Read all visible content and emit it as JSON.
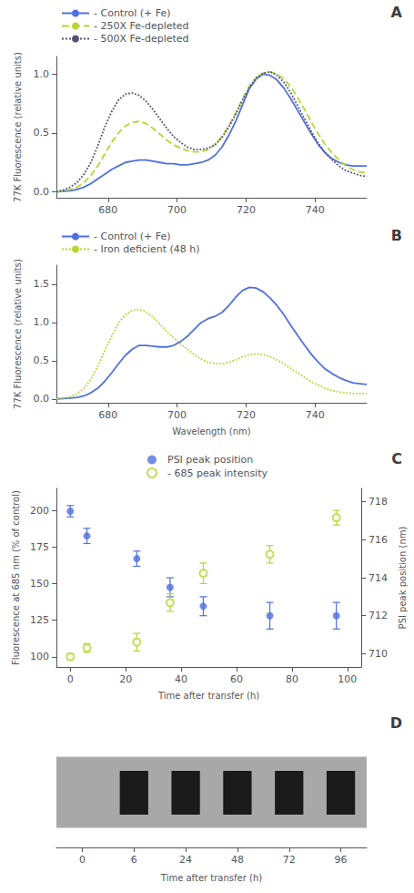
{
  "chart_data": [
    {
      "type": "line",
      "title": "A",
      "ylabel": "77K Fluorescence (relative units)",
      "xlim": [
        665,
        755
      ],
      "xticks": [
        680,
        700,
        720,
        740
      ],
      "ylim": [
        -0.05,
        1.15
      ],
      "yticks": [
        {
          "value": 0.0,
          "label": "0.0"
        },
        0.5,
        {
          "value": 1.0,
          "label": "1.0"
        }
      ],
      "grid": false,
      "legend": "top left",
      "x": [
        665,
        667,
        669,
        671,
        673,
        675,
        677,
        679,
        681,
        683,
        685,
        687,
        689,
        691,
        693,
        695,
        697,
        699,
        701,
        703,
        705,
        707,
        709,
        711,
        713,
        715,
        717,
        719,
        721,
        723,
        725,
        727,
        729,
        731,
        733,
        735,
        737,
        739,
        741,
        743,
        745,
        747,
        749,
        751,
        753,
        755
      ],
      "series": [
        {
          "name": "- Control (+ Fe)",
          "line_style": "solid",
          "values": [
            0.0,
            0.005,
            0.01,
            0.02,
            0.04,
            0.07,
            0.11,
            0.15,
            0.19,
            0.22,
            0.25,
            0.26,
            0.27,
            0.27,
            0.26,
            0.25,
            0.24,
            0.24,
            0.23,
            0.23,
            0.24,
            0.25,
            0.27,
            0.31,
            0.38,
            0.48,
            0.6,
            0.74,
            0.88,
            0.96,
            1.0,
            0.99,
            0.95,
            0.88,
            0.79,
            0.69,
            0.59,
            0.49,
            0.4,
            0.33,
            0.28,
            0.25,
            0.23,
            0.22,
            0.22,
            0.22
          ]
        },
        {
          "name": "- 250X Fe-depleted",
          "line_style": "dashed",
          "values": [
            0.0,
            0.01,
            0.02,
            0.04,
            0.08,
            0.14,
            0.22,
            0.32,
            0.42,
            0.5,
            0.56,
            0.59,
            0.6,
            0.58,
            0.54,
            0.49,
            0.44,
            0.4,
            0.37,
            0.35,
            0.34,
            0.34,
            0.36,
            0.4,
            0.47,
            0.56,
            0.67,
            0.79,
            0.9,
            0.97,
            1.01,
            1.02,
            1.0,
            0.96,
            0.89,
            0.8,
            0.7,
            0.59,
            0.49,
            0.4,
            0.33,
            0.27,
            0.22,
            0.19,
            0.17,
            0.16
          ]
        },
        {
          "name": "- 500X Fe-depleted",
          "line_style": "dotted",
          "values": [
            0.0,
            0.015,
            0.04,
            0.08,
            0.15,
            0.25,
            0.39,
            0.55,
            0.68,
            0.78,
            0.83,
            0.84,
            0.82,
            0.77,
            0.7,
            0.62,
            0.54,
            0.47,
            0.42,
            0.38,
            0.36,
            0.36,
            0.37,
            0.4,
            0.46,
            0.55,
            0.66,
            0.78,
            0.89,
            0.97,
            1.01,
            1.02,
            0.99,
            0.93,
            0.84,
            0.73,
            0.62,
            0.51,
            0.41,
            0.33,
            0.27,
            0.22,
            0.18,
            0.16,
            0.14,
            0.13
          ]
        }
      ]
    },
    {
      "type": "line",
      "title": "B",
      "xlabel": "Wavelength (nm)",
      "ylabel": "77K Fluorescence (relative units)",
      "xlim": [
        665,
        755
      ],
      "xticks": [
        680,
        700,
        720,
        740
      ],
      "ylim": [
        -0.05,
        1.75
      ],
      "yticks": [
        {
          "value": 0.0,
          "label": "0.0"
        },
        0.5,
        {
          "value": 1.0,
          "label": "1.0"
        },
        1.5
      ],
      "grid": false,
      "legend": "top left",
      "x": [
        665,
        667,
        669,
        671,
        673,
        675,
        677,
        679,
        681,
        683,
        685,
        687,
        689,
        691,
        693,
        695,
        697,
        699,
        701,
        703,
        705,
        707,
        709,
        711,
        713,
        715,
        717,
        719,
        721,
        723,
        725,
        727,
        729,
        731,
        733,
        735,
        737,
        739,
        741,
        743,
        745,
        747,
        749,
        751,
        753,
        755
      ],
      "series": [
        {
          "name": "- Control (+ Fe)",
          "line_style": "solid",
          "values": [
            0.0,
            0.005,
            0.01,
            0.02,
            0.04,
            0.08,
            0.14,
            0.23,
            0.34,
            0.46,
            0.57,
            0.65,
            0.7,
            0.7,
            0.69,
            0.68,
            0.68,
            0.7,
            0.75,
            0.82,
            0.91,
            1.0,
            1.05,
            1.08,
            1.13,
            1.22,
            1.33,
            1.42,
            1.46,
            1.45,
            1.4,
            1.32,
            1.22,
            1.1,
            0.96,
            0.83,
            0.7,
            0.58,
            0.48,
            0.39,
            0.33,
            0.28,
            0.24,
            0.21,
            0.2,
            0.19
          ]
        },
        {
          "name": "- Iron deficient (48 h)",
          "line_style": "dotted",
          "values": [
            0.0,
            0.01,
            0.03,
            0.07,
            0.14,
            0.26,
            0.43,
            0.63,
            0.82,
            0.99,
            1.1,
            1.16,
            1.17,
            1.14,
            1.07,
            0.98,
            0.88,
            0.8,
            0.72,
            0.65,
            0.58,
            0.52,
            0.48,
            0.46,
            0.46,
            0.48,
            0.51,
            0.55,
            0.58,
            0.59,
            0.58,
            0.55,
            0.51,
            0.46,
            0.4,
            0.34,
            0.28,
            0.22,
            0.18,
            0.14,
            0.11,
            0.09,
            0.08,
            0.07,
            0.07,
            0.07
          ]
        }
      ]
    },
    {
      "type": "scatter",
      "title": "C",
      "xlabel": "Time after transfer (h)",
      "ylabel": "Fluorescence at 685 nm (% of control)",
      "y2label": "PSI peak position (nm)",
      "xlim": [
        -5,
        105
      ],
      "xticks": [
        0,
        20,
        40,
        60,
        80,
        100
      ],
      "ylim": [
        93,
        215
      ],
      "yticks": [
        100,
        125,
        150,
        175,
        200
      ],
      "y2lim": [
        709.3,
        718.7
      ],
      "y2ticks": [
        710,
        712,
        714,
        716,
        718
      ],
      "grid": false,
      "legend": "top center",
      "x": [
        0,
        6,
        24,
        36,
        48,
        72,
        96
      ],
      "series": [
        {
          "name": "PSI peak position",
          "axis": "y2",
          "marker": "filled circle",
          "values": [
            717.5,
            716.2,
            715.0,
            713.5,
            712.5,
            712.0,
            712.0
          ],
          "errors": [
            0.3,
            0.4,
            0.4,
            0.5,
            0.5,
            0.7,
            0.7
          ]
        },
        {
          "name": "- 685 peak intensity",
          "marker": "open circle",
          "values": [
            100,
            106,
            110,
            137,
            157,
            170,
            195
          ],
          "errors": [
            2,
            3,
            6,
            6,
            7,
            6,
            5
          ]
        }
      ]
    },
    {
      "type": "gel",
      "title": "D",
      "xlabel": "Time after transfer (h)",
      "categories": [
        "0",
        "6",
        "24",
        "48",
        "72",
        "96"
      ],
      "bands": [
        "6",
        "24",
        "48",
        "72",
        "96"
      ],
      "color": "#1a1a1a",
      "tick_labels": "x"
    }
  ]
}
